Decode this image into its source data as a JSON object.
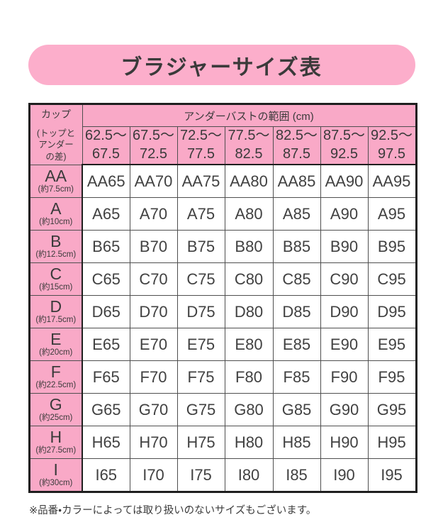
{
  "title_banner": {
    "label": "ブラジャーサイズ表"
  },
  "table": {
    "corner": {
      "cup_label": "カップ",
      "sub_lines": [
        "(トップと",
        "アンダー",
        "の差)"
      ]
    },
    "underbust_header": "アンダーバストの範囲 (cm)",
    "ranges": [
      {
        "line1": "62.5～",
        "line2": "67.5"
      },
      {
        "line1": "67.5～",
        "line2": "72.5"
      },
      {
        "line1": "72.5～",
        "line2": "77.5"
      },
      {
        "line1": "77.5～",
        "line2": "82.5"
      },
      {
        "line1": "82.5～",
        "line2": "87.5"
      },
      {
        "line1": "87.5～",
        "line2": "92.5"
      },
      {
        "line1": "92.5～",
        "line2": "97.5"
      }
    ],
    "rows": [
      {
        "cup": "AA",
        "diff": "(約7.5cm)",
        "sizes": [
          "AA65",
          "AA70",
          "AA75",
          "AA80",
          "AA85",
          "AA90",
          "AA95"
        ]
      },
      {
        "cup": "A",
        "diff": "(約10cm)",
        "sizes": [
          "A65",
          "A70",
          "A75",
          "A80",
          "A85",
          "A90",
          "A95"
        ]
      },
      {
        "cup": "B",
        "diff": "(約12.5cm)",
        "sizes": [
          "B65",
          "B70",
          "B75",
          "B80",
          "B85",
          "B90",
          "B95"
        ]
      },
      {
        "cup": "C",
        "diff": "(約15cm)",
        "sizes": [
          "C65",
          "C70",
          "C75",
          "C80",
          "C85",
          "C90",
          "C95"
        ]
      },
      {
        "cup": "D",
        "diff": "(約17.5cm)",
        "sizes": [
          "D65",
          "D70",
          "D75",
          "D80",
          "D85",
          "D90",
          "D95"
        ]
      },
      {
        "cup": "E",
        "diff": "(約20cm)",
        "sizes": [
          "E65",
          "E70",
          "E75",
          "E80",
          "E85",
          "E90",
          "E95"
        ]
      },
      {
        "cup": "F",
        "diff": "(約22.5cm)",
        "sizes": [
          "F65",
          "F70",
          "F75",
          "F80",
          "F85",
          "F90",
          "F95"
        ]
      },
      {
        "cup": "G",
        "diff": "(約25cm)",
        "sizes": [
          "G65",
          "G70",
          "G75",
          "G80",
          "G85",
          "G90",
          "G95"
        ]
      },
      {
        "cup": "H",
        "diff": "(約27.5cm)",
        "sizes": [
          "H65",
          "H70",
          "H75",
          "H80",
          "H85",
          "H90",
          "H95"
        ]
      },
      {
        "cup": "I",
        "diff": "(約30cm)",
        "sizes": [
          "I65",
          "I70",
          "I75",
          "I80",
          "I85",
          "I90",
          "I95"
        ]
      }
    ]
  },
  "footnote": "※品番・カラーによっては取り扱いのないサイズもございます。",
  "colors": {
    "banner_pink": "#fcaecb",
    "header_pink": "#f9a9c7",
    "border_dark": "#1f1f1f",
    "border_inner": "#4f4f4f",
    "text_dark": "#3a3a3a",
    "cell_background": "#ffffff"
  }
}
